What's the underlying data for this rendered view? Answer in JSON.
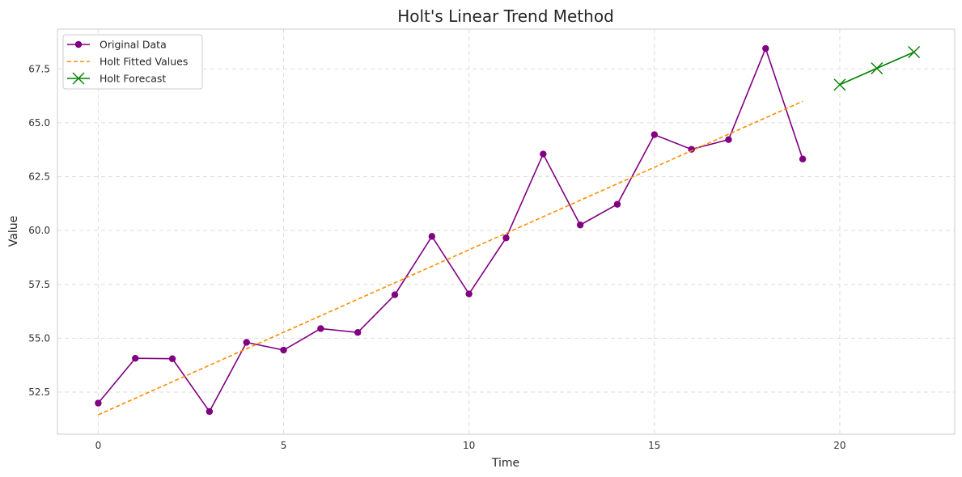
{
  "chart_data": {
    "type": "line",
    "title": "Holt's Linear Trend Method",
    "xlabel": "Time",
    "ylabel": "Value",
    "xlim": [
      -1.1,
      23.1
    ],
    "ylim": [
      50.55,
      69.35
    ],
    "xticks": [
      0,
      5,
      10,
      15,
      20
    ],
    "xtick_labels": [
      "0",
      "5",
      "10",
      "15",
      "20"
    ],
    "yticks": [
      52.5,
      55.0,
      57.5,
      60.0,
      62.5,
      65.0,
      67.5
    ],
    "ytick_labels": [
      "52.5",
      "55.0",
      "57.5",
      "60.0",
      "62.5",
      "65.0",
      "67.5"
    ],
    "grid": true,
    "legend_position": "top-left",
    "series": [
      {
        "name": "Original Data",
        "color": "#800080",
        "style": "solid",
        "marker": "circle",
        "x": [
          0,
          1,
          2,
          3,
          4,
          5,
          6,
          7,
          8,
          9,
          10,
          11,
          12,
          13,
          14,
          15,
          16,
          17,
          18,
          19
        ],
        "values": [
          51.99,
          54.07,
          54.05,
          51.6,
          54.81,
          54.45,
          55.45,
          55.27,
          57.02,
          59.73,
          57.06,
          59.66,
          63.55,
          60.26,
          61.22,
          64.45,
          63.77,
          64.22,
          68.45,
          63.32
        ]
      },
      {
        "name": "Holt Fitted Values",
        "color": "#ff8c00",
        "style": "dashed",
        "marker": "none",
        "x": [
          0,
          19
        ],
        "values": [
          51.45,
          66.0
        ]
      },
      {
        "name": "Holt Forecast",
        "color": "#008000",
        "style": "solid",
        "marker": "x",
        "x": [
          20,
          21,
          22
        ],
        "values": [
          66.77,
          67.53,
          68.28
        ]
      }
    ]
  }
}
